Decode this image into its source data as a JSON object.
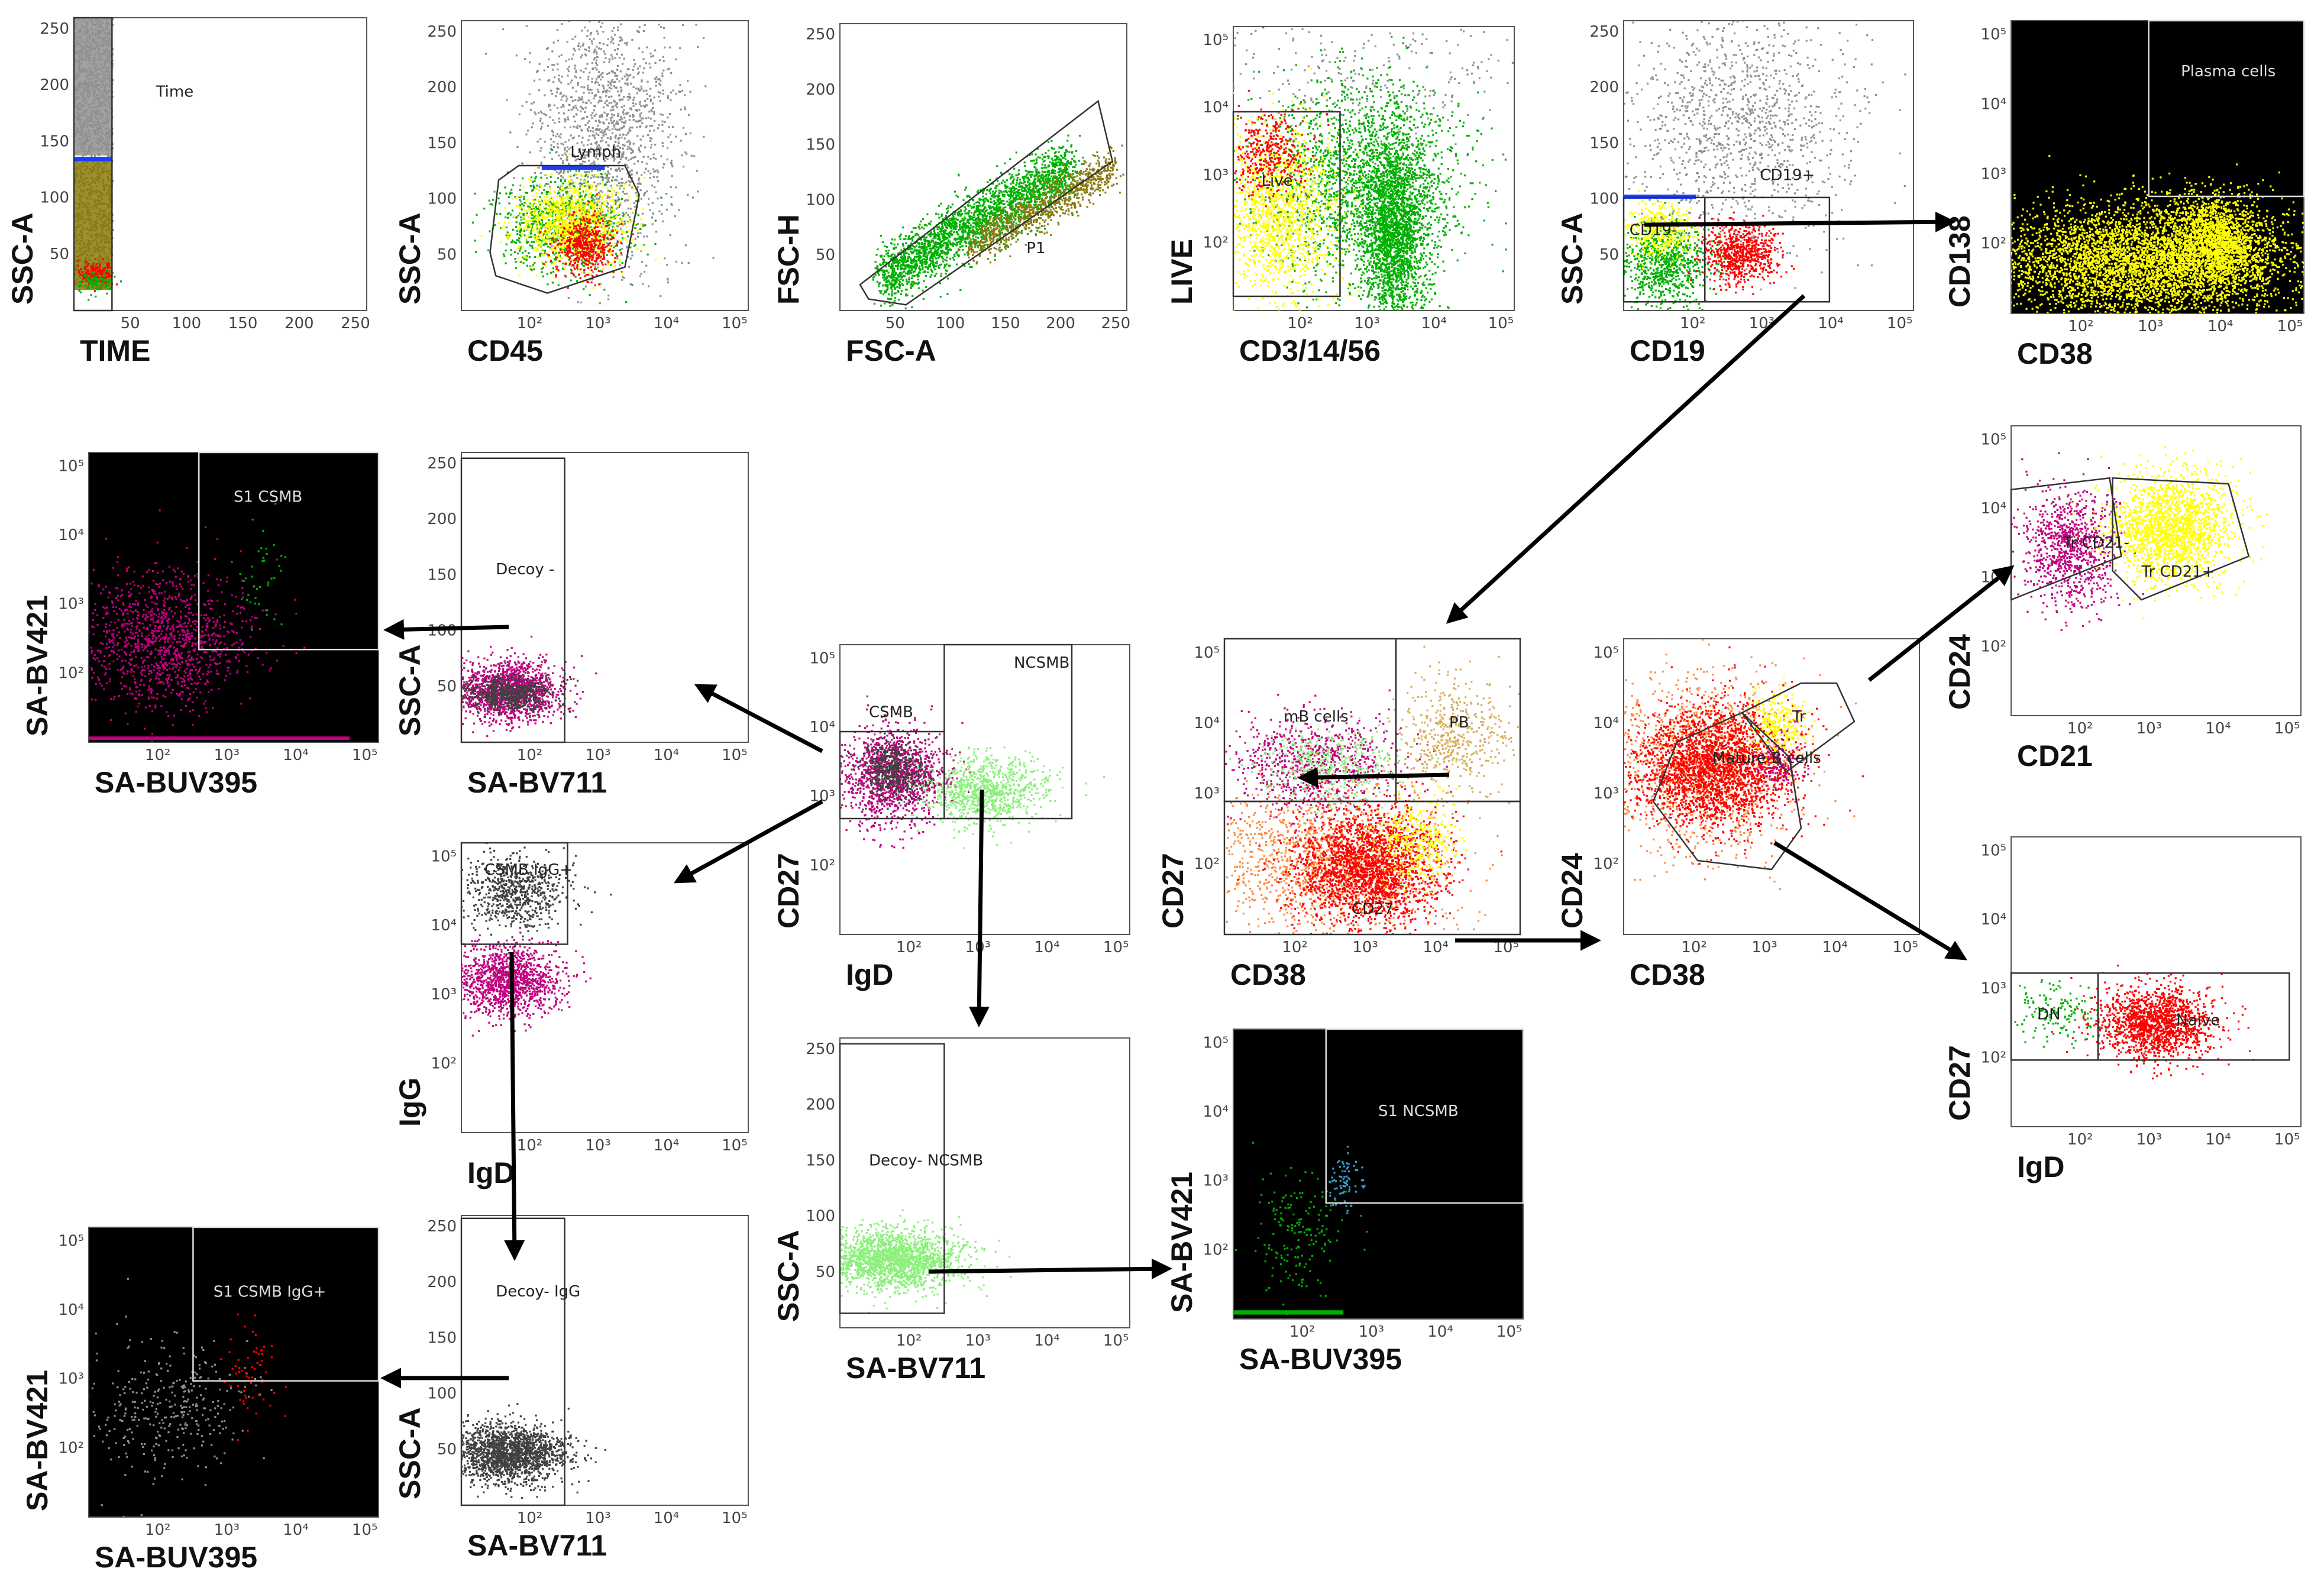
{
  "colors": {
    "black": "#000000",
    "yellow": "#ffff00",
    "red": "#ff0000",
    "green": "#00b000",
    "lightgreen": "#8cf07c",
    "magenta": "#c0007e",
    "grey": "#909090",
    "olive": "#8a7a10",
    "orange": "#ff8a3c",
    "tan": "#d8ae5a",
    "blue": "#1e3cff",
    "darkgrey": "#404040",
    "teal": "#3aa0d0"
  },
  "panels": [
    {
      "id": "p1",
      "xlabel": "TIME",
      "ylabel": "SSC-A",
      "xscale": "lin",
      "yscale": "lin",
      "bg": "white",
      "gates": [
        {
          "label": "Time"
        }
      ],
      "pops": [
        {
          "name": "time-gray",
          "color": "grey"
        },
        {
          "name": "time-olive",
          "color": "olive"
        },
        {
          "name": "time-red",
          "color": "red"
        },
        {
          "name": "time-green",
          "color": "green"
        }
      ]
    },
    {
      "id": "p2",
      "xlabel": "CD45",
      "ylabel": "SSC-A",
      "xscale": "log",
      "yscale": "lin",
      "bg": "white",
      "gates": [
        {
          "label": "Lymph"
        }
      ],
      "pops": [
        {
          "name": "sscgrey",
          "color": "grey"
        },
        {
          "name": "lymph-green",
          "color": "green"
        },
        {
          "name": "lymph-yellow",
          "color": "yellow"
        },
        {
          "name": "lymph-red",
          "color": "red"
        }
      ]
    },
    {
      "id": "p3",
      "xlabel": "FSC-A",
      "ylabel": "FSC-H",
      "xscale": "lin",
      "yscale": "lin",
      "bg": "white",
      "gates": [
        {
          "label": "P1"
        }
      ],
      "pops": [
        {
          "name": "singlets-green",
          "color": "green"
        },
        {
          "name": "doublets-olive",
          "color": "olive"
        }
      ]
    },
    {
      "id": "p4",
      "xlabel": "CD3/14/56",
      "ylabel": "LIVE",
      "xscale": "log",
      "yscale": "log",
      "bg": "white",
      "gates": [
        {
          "label": "Live"
        }
      ],
      "pops": [
        {
          "name": "dead-grey",
          "color": "grey"
        },
        {
          "name": "cd3-green",
          "color": "green"
        },
        {
          "name": "live-yellow",
          "color": "yellow"
        },
        {
          "name": "live-red",
          "color": "red"
        }
      ]
    },
    {
      "id": "p5",
      "xlabel": "CD19",
      "ylabel": "SSC-A",
      "xscale": "log",
      "yscale": "lin",
      "bg": "white",
      "gates": [
        {
          "label": "CD19-"
        },
        {
          "label": "CD19+"
        }
      ],
      "pops": [
        {
          "name": "cd19-grey",
          "color": "grey"
        },
        {
          "name": "cd19neg-green",
          "color": "green"
        },
        {
          "name": "cd19neg-yellow",
          "color": "yellow"
        },
        {
          "name": "cd19pos-red",
          "color": "red"
        }
      ]
    },
    {
      "id": "p6",
      "xlabel": "CD38",
      "ylabel": "CD138",
      "xscale": "log",
      "yscale": "log",
      "bg": "black",
      "gates": [
        {
          "label": "Plasma cells"
        }
      ],
      "pops": [
        {
          "name": "cd38-yellow",
          "color": "yellow"
        }
      ]
    },
    {
      "id": "p7",
      "xlabel": "CD21",
      "ylabel": "CD24",
      "xscale": "log",
      "yscale": "log",
      "bg": "white",
      "gates": [
        {
          "label": "Tr CD21-"
        },
        {
          "label": "Tr CD21+"
        }
      ],
      "pops": [
        {
          "name": "cd21neg-magenta",
          "color": "magenta"
        },
        {
          "name": "cd21pos-yellow",
          "color": "yellow"
        }
      ]
    },
    {
      "id": "p8",
      "xlabel": "SA-BUV395",
      "ylabel": "SA-BV421",
      "xscale": "log",
      "yscale": "log",
      "bg": "black",
      "gates": [
        {
          "label": "S1 CSMB"
        }
      ],
      "pops": [
        {
          "name": "csmb-magenta",
          "color": "magenta"
        },
        {
          "name": "csmb-green",
          "color": "green"
        }
      ]
    },
    {
      "id": "p9",
      "xlabel": "SA-BV711",
      "ylabel": "SSC-A",
      "xscale": "log",
      "yscale": "lin",
      "bg": "white",
      "gates": [
        {
          "label": "Decoy -"
        }
      ],
      "pops": [
        {
          "name": "decoy-magenta",
          "color": "magenta"
        },
        {
          "name": "decoy-dark",
          "color": "darkgrey"
        }
      ]
    },
    {
      "id": "p10",
      "xlabel": "IgD",
      "ylabel": "CD27",
      "xscale": "log",
      "yscale": "log",
      "bg": "white",
      "gates": [
        {
          "label": "CSMB"
        },
        {
          "label": "NCSMB"
        }
      ],
      "pops": [
        {
          "name": "csmb-mag",
          "color": "magenta"
        },
        {
          "name": "csmb-dk",
          "color": "darkgrey"
        },
        {
          "name": "ncsmb-lg",
          "color": "lightgreen"
        }
      ]
    },
    {
      "id": "p11",
      "xlabel": "CD38",
      "ylabel": "CD27",
      "xscale": "log",
      "yscale": "log",
      "bg": "white",
      "gates": [
        {
          "label": "mB cells"
        },
        {
          "label": "PB"
        },
        {
          "label": "CD27-"
        }
      ],
      "pops": [
        {
          "name": "mb-magenta",
          "color": "magenta"
        },
        {
          "name": "mb-green",
          "color": "lightgreen"
        },
        {
          "name": "pb-tan",
          "color": "tan"
        },
        {
          "name": "neg-orange",
          "color": "orange"
        },
        {
          "name": "neg-red",
          "color": "red"
        },
        {
          "name": "neg-yellow",
          "color": "yellow"
        }
      ]
    },
    {
      "id": "p12",
      "xlabel": "CD38",
      "ylabel": "CD24",
      "xscale": "log",
      "yscale": "log",
      "bg": "white",
      "gates": [
        {
          "label": "Mature B cells"
        },
        {
          "label": "Tr"
        }
      ],
      "pops": [
        {
          "name": "mat-orange",
          "color": "orange"
        },
        {
          "name": "mat-red",
          "color": "red"
        },
        {
          "name": "tr-yellow",
          "color": "yellow"
        },
        {
          "name": "tr-magenta",
          "color": "magenta"
        }
      ]
    },
    {
      "id": "p13",
      "xlabel": "IgD",
      "ylabel": "CD27",
      "xscale": "log",
      "yscale": "log",
      "bg": "white",
      "gates": [
        {
          "label": "DN"
        },
        {
          "label": "Naive"
        }
      ],
      "pops": [
        {
          "name": "dn-green",
          "color": "green"
        },
        {
          "name": "naive-red",
          "color": "red"
        }
      ]
    },
    {
      "id": "p14",
      "xlabel": "IgD",
      "ylabel": "IgG",
      "xscale": "log",
      "yscale": "log",
      "bg": "white",
      "gates": [
        {
          "label": "CSMB IgG+"
        }
      ],
      "pops": [
        {
          "name": "igg-dark",
          "color": "darkgrey"
        },
        {
          "name": "igg-magenta",
          "color": "magenta"
        }
      ]
    },
    {
      "id": "p15",
      "xlabel": "SA-BV711",
      "ylabel": "SSC-A",
      "xscale": "log",
      "yscale": "lin",
      "bg": "white",
      "gates": [
        {
          "label": "Decoy- NCSMB"
        }
      ],
      "pops": [
        {
          "name": "nc-lg",
          "color": "lightgreen"
        }
      ]
    },
    {
      "id": "p16",
      "xlabel": "SA-BUV395",
      "ylabel": "SA-BV421",
      "xscale": "log",
      "yscale": "log",
      "bg": "black",
      "gates": [
        {
          "label": "S1 NCSMB"
        }
      ],
      "pops": [
        {
          "name": "ncs-green",
          "color": "green"
        },
        {
          "name": "ncs-teal",
          "color": "teal"
        }
      ]
    },
    {
      "id": "p17",
      "xlabel": "SA-BUV395",
      "ylabel": "SA-BV421",
      "xscale": "log",
      "yscale": "log",
      "bg": "black",
      "gates": [
        {
          "label": "S1 CSMB IgG+"
        }
      ],
      "pops": [
        {
          "name": "s1igg-grey",
          "color": "grey"
        },
        {
          "name": "s1igg-red",
          "color": "red"
        }
      ]
    },
    {
      "id": "p18",
      "xlabel": "SA-BV711",
      "ylabel": "SSC-A",
      "xscale": "log",
      "yscale": "lin",
      "bg": "white",
      "gates": [
        {
          "label": "Decoy- IgG"
        }
      ],
      "pops": [
        {
          "name": "dig-dark",
          "color": "darkgrey"
        }
      ]
    }
  ],
  "ticks": {
    "lin": [
      "50",
      "100",
      "150",
      "200",
      "250"
    ],
    "log": [
      "10²",
      "10³",
      "10⁴",
      "10⁵"
    ]
  }
}
